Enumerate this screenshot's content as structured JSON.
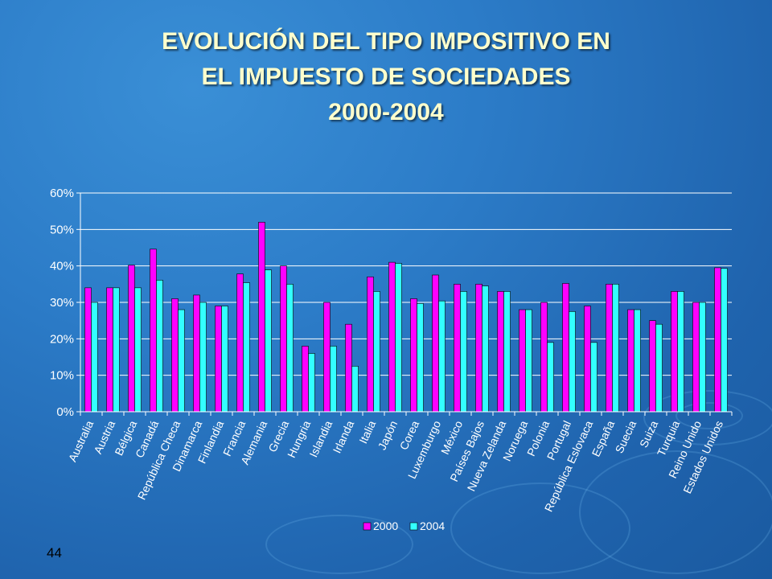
{
  "slide": {
    "title_lines": [
      "EVOLUCIÓN DEL TIPO IMPOSITIVO EN",
      "EL IMPUESTO DE SOCIEDADES",
      "2000-2004"
    ],
    "slide_number": "44"
  },
  "colors": {
    "series_2000": "#ff00ff",
    "series_2004": "#33ffff",
    "grid": "#ffffff",
    "text": "#ffffff"
  },
  "chart_data": {
    "type": "bar",
    "title": "",
    "xlabel": "",
    "ylabel": "",
    "ylim": [
      0,
      60
    ],
    "yticks": [
      0,
      10,
      20,
      30,
      40,
      50,
      60
    ],
    "ytick_labels": [
      "0%",
      "10%",
      "20%",
      "30%",
      "40%",
      "50%",
      "60%"
    ],
    "grid": true,
    "legend_position": "bottom",
    "categories": [
      "Australia",
      "Austria",
      "Bélgica",
      "Canadá",
      "República Checa",
      "Dinamarca",
      "Finlandia",
      "Francia",
      "Alemania",
      "Grecia",
      "Hungria",
      "Islandia",
      "Irlanda",
      "Italia",
      "Japón",
      "Corea",
      "Luxemburgo",
      "México",
      "Países Bajos",
      "Nueva Zelanda",
      "Noruega",
      "Polonia",
      "Portugal",
      "República Eslovaca",
      "España",
      "Suecia",
      "Suiza",
      "Turquia",
      "Reino Unido",
      "Estados Unidos"
    ],
    "series": [
      {
        "name": "2000",
        "values": [
          34,
          34,
          40.2,
          44.6,
          31,
          32,
          29,
          37.8,
          52,
          40,
          18,
          30,
          24,
          37,
          41,
          31,
          37.5,
          35,
          35,
          33,
          28,
          30,
          35.2,
          29,
          35,
          28,
          25,
          33,
          30,
          39.5
        ]
      },
      {
        "name": "2004",
        "values": [
          30,
          34,
          34,
          36.1,
          28,
          30,
          29,
          35.4,
          38.9,
          35,
          16,
          18,
          12.5,
          33,
          40.7,
          29.7,
          30.4,
          33,
          34.5,
          33,
          28,
          19,
          27.5,
          19,
          35,
          28,
          24,
          33,
          30,
          39.3
        ]
      }
    ]
  }
}
